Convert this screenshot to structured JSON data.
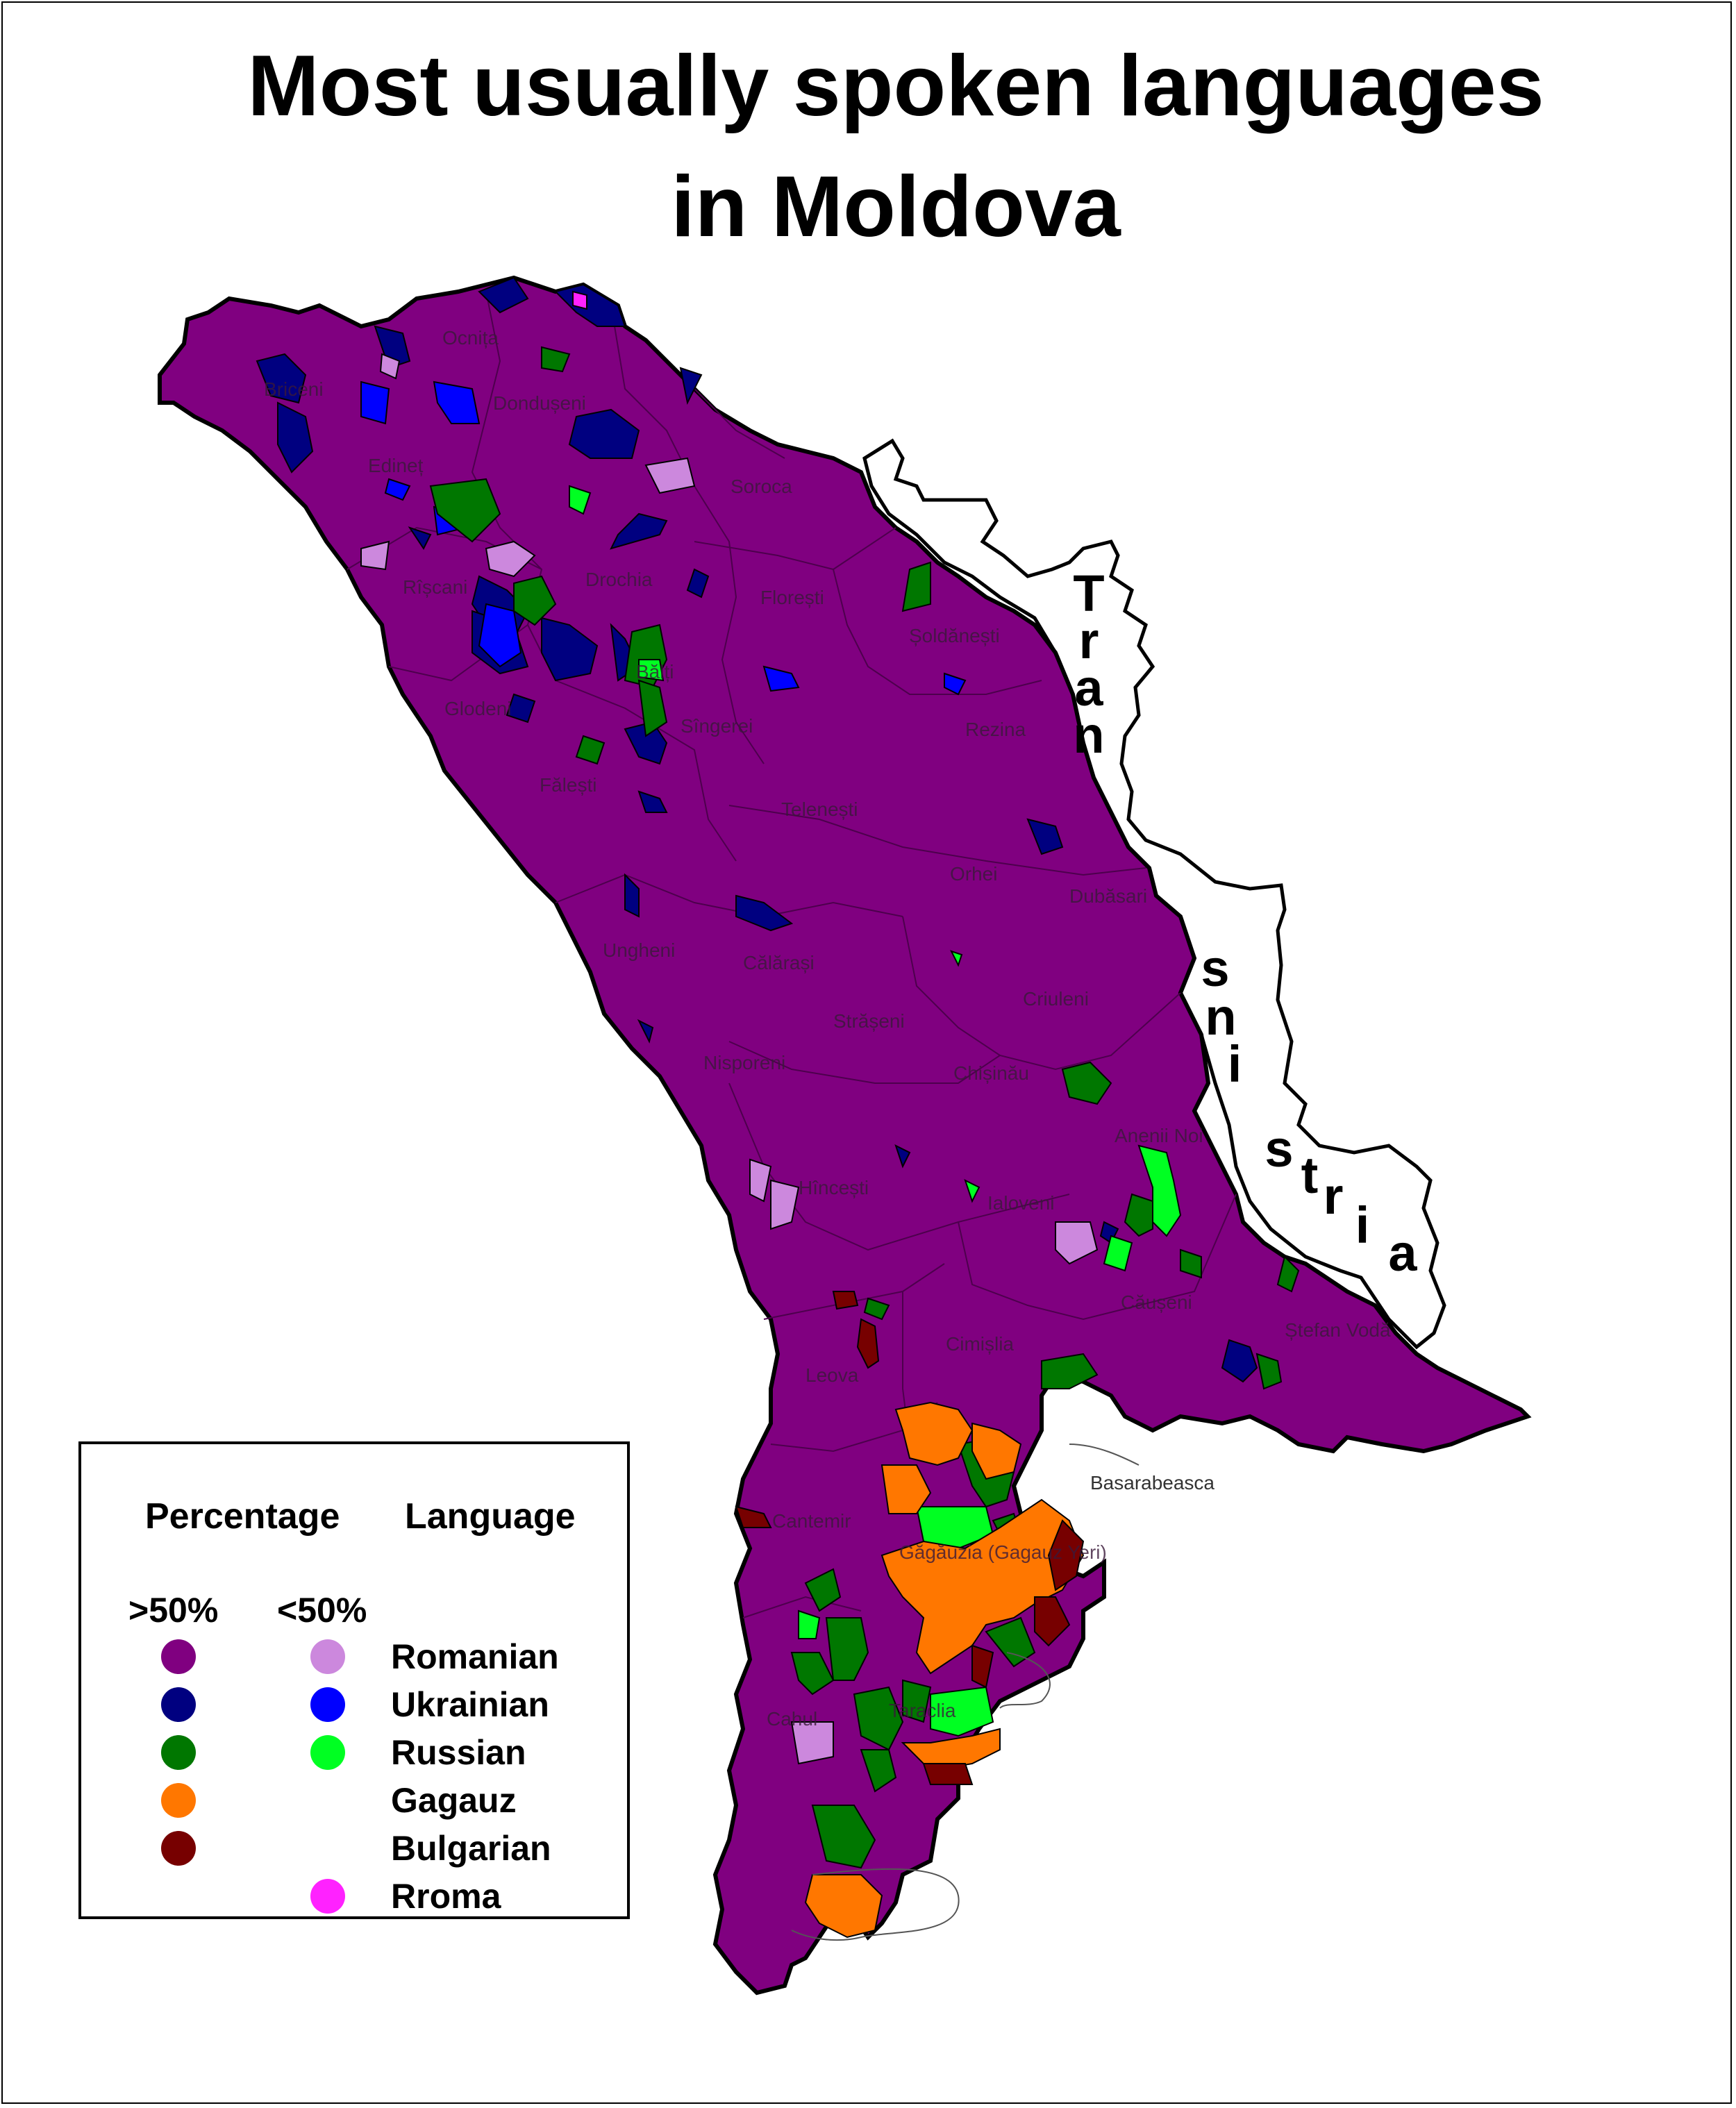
{
  "title": {
    "line1": "Most usually spoken languages",
    "line2": "in Moldova"
  },
  "legend": {
    "header_percentage": "Percentage",
    "header_language": "Language",
    "col_majority": ">50%",
    "col_minority": "<50%",
    "items": [
      {
        "label": "Romanian",
        "majority": "#800080",
        "minority": "#cc88dd"
      },
      {
        "label": "Ukrainian",
        "majority": "#000080",
        "minority": "#0000ff"
      },
      {
        "label": "Russian",
        "majority": "#007700",
        "minority": "#00ff22"
      },
      {
        "label": "Gagauz",
        "majority": "#ff7700",
        "minority": null
      },
      {
        "label": "Bulgarian",
        "majority": "#770000",
        "minority": null
      },
      {
        "label": "Rroma",
        "majority": null,
        "minority": "#ff22ff"
      }
    ]
  },
  "districts": [
    "Briceni",
    "Ocnița",
    "Dondușeni",
    "Edineț",
    "Soroca",
    "Rîșcani",
    "Drochia",
    "Florești",
    "Șoldănești",
    "Glodeni",
    "Bălți",
    "Sîngerei",
    "Rezina",
    "Fălești",
    "Telenești",
    "Orhei",
    "Dubăsari",
    "Ungheni",
    "Călărași",
    "Criuleni",
    "Strășeni",
    "Nisporeni",
    "Chișinău",
    "Anenii Noi",
    "Hîncești",
    "Ialoveni",
    "Căușeni",
    "Ștefan Vodă",
    "Cimișlia",
    "Leova",
    "Basarabeasca",
    "Cantemir",
    "Găgăuzia (Gagauz Yeri)",
    "Taraclia",
    "Cahul"
  ],
  "transnistria_label": "Transnistria"
}
